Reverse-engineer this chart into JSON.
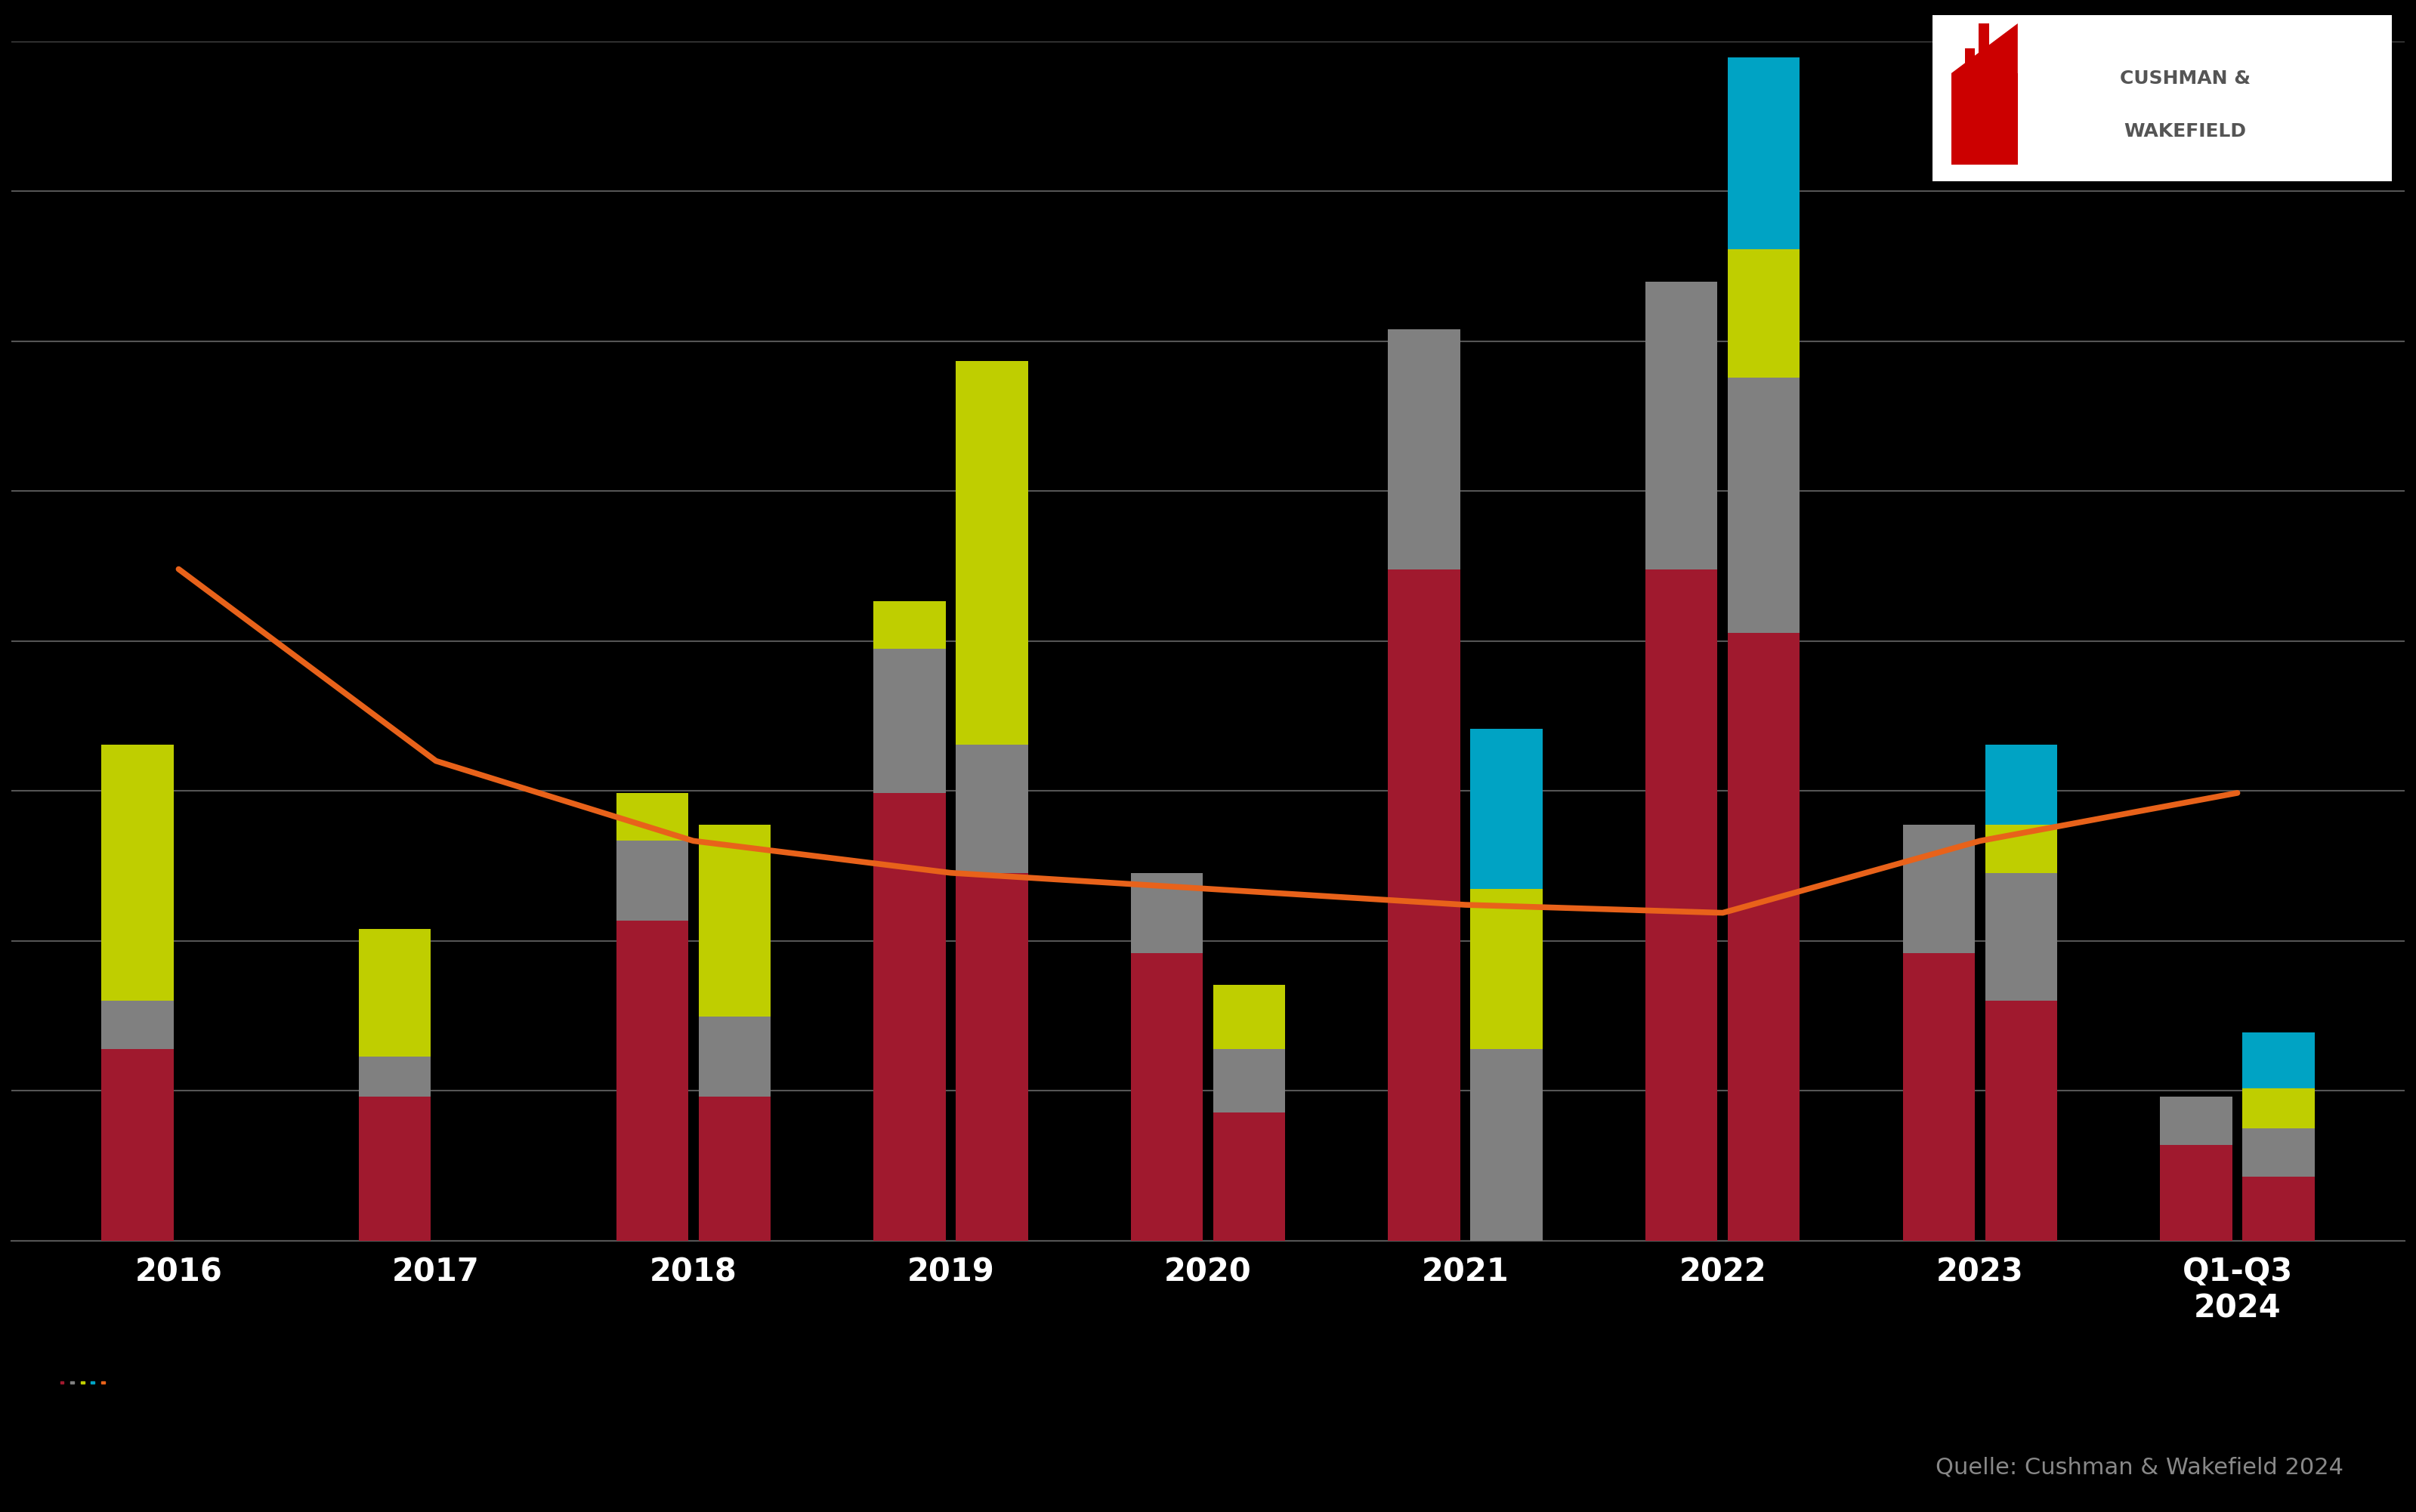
{
  "background_color": "#000000",
  "bar_width": 0.28,
  "categories": [
    "2016",
    "2017",
    "2018",
    "2019",
    "2020",
    "2021",
    "2022",
    "2023",
    "Q1-Q3\n2024"
  ],
  "n_cats": 9,
  "bar_data_left": {
    "red": [
      1.2,
      0.9,
      2.0,
      2.8,
      1.8,
      4.2,
      4.2,
      1.8,
      0.6
    ],
    "gray": [
      0.3,
      0.25,
      0.5,
      0.9,
      0.5,
      1.5,
      1.8,
      0.8,
      0.3
    ],
    "lime": [
      1.6,
      0.8,
      0.3,
      0.3,
      0.0,
      0.0,
      0.0,
      0.0,
      0.0
    ],
    "cyan": [
      0.0,
      0.0,
      0.0,
      0.0,
      0.0,
      0.0,
      0.0,
      0.0,
      0.0
    ]
  },
  "bar_data_right": {
    "red": [
      0.0,
      0.0,
      0.9,
      2.3,
      0.8,
      0.0,
      3.8,
      1.5,
      0.4
    ],
    "gray": [
      0.0,
      0.0,
      0.5,
      0.8,
      0.4,
      1.2,
      1.6,
      0.8,
      0.3
    ],
    "lime": [
      0.0,
      0.0,
      1.2,
      2.4,
      0.4,
      1.0,
      0.8,
      0.3,
      0.25
    ],
    "cyan": [
      0.0,
      0.0,
      0.0,
      0.0,
      0.0,
      1.0,
      1.2,
      0.5,
      0.35
    ]
  },
  "line_values": [
    4.2,
    3.0,
    2.5,
    2.3,
    2.2,
    2.1,
    2.05,
    2.5,
    2.8
  ],
  "line_x_offsets": [
    0.0,
    0.0,
    0.0,
    0.0,
    0.0,
    0.0,
    0.0,
    0.0,
    0.0
  ],
  "colors": {
    "red": "#A0192E",
    "gray": "#808080",
    "lime": "#BFCE00",
    "cyan": "#00A3C4",
    "line": "#E8621A"
  },
  "grid_color": "#555555",
  "text_color": "#ffffff",
  "legend_colors": [
    "#A0192E",
    "#808080",
    "#BFCE00",
    "#00A3C4",
    "#E8621A"
  ],
  "source_text": "Quelle: Cushman & Wakefield 2024",
  "ylim": [
    0,
    7.5
  ],
  "ytick_count": 8,
  "logo_bg": "#ffffff"
}
